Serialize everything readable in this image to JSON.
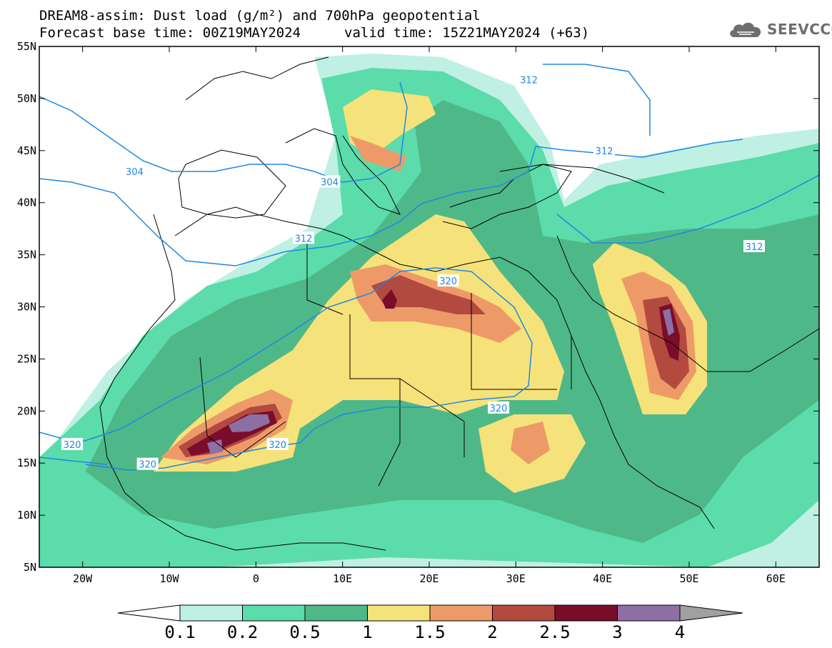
{
  "title": {
    "line1": "DREAM8-assim: Dust load (g/m²) and 700hPa geopotential",
    "line2_base": "Forecast base time: 00Z19MAY2024",
    "line2_valid": "valid time: 15Z21MAY2024 (+63)"
  },
  "logo": {
    "text": "SEEVCCC",
    "icon": "cloud-icon"
  },
  "axes": {
    "lat_labels": [
      "55N",
      "50N",
      "45N",
      "40N",
      "35N",
      "30N",
      "25N",
      "20N",
      "15N",
      "10N",
      "5N"
    ],
    "lon_labels": [
      "20W",
      "10W",
      "0",
      "10E",
      "20E",
      "30E",
      "40E",
      "50E",
      "60E"
    ],
    "lon_range": [
      -25,
      65
    ],
    "lat_range": [
      5,
      55
    ]
  },
  "colorbar": {
    "labels": [
      "0.1",
      "0.2",
      "0.5",
      "1",
      "1.5",
      "2",
      "2.5",
      "3",
      "4"
    ],
    "colors": [
      "#bff0e3",
      "#5bdcaa",
      "#4fb888",
      "#f6e27a",
      "#ee9a68",
      "#b24a40",
      "#7a0d2a",
      "#8e6fa4",
      "#a0a0a0"
    ]
  },
  "contour_labels": [
    {
      "text": "312",
      "lon": 31.5,
      "lat": 51.8
    },
    {
      "text": "312",
      "lon": 40.2,
      "lat": 45.0
    },
    {
      "text": "304",
      "lon": -14.0,
      "lat": 43.0
    },
    {
      "text": "304",
      "lon": 8.5,
      "lat": 42.0
    },
    {
      "text": "312",
      "lon": 5.5,
      "lat": 36.6
    },
    {
      "text": "312",
      "lon": 57.5,
      "lat": 35.8
    },
    {
      "text": "320",
      "lon": 22.2,
      "lat": 32.5
    },
    {
      "text": "320",
      "lon": 28.0,
      "lat": 20.3
    },
    {
      "text": "320",
      "lon": -21.2,
      "lat": 16.8
    },
    {
      "text": "320",
      "lon": 2.5,
      "lat": 16.8
    },
    {
      "text": "320",
      "lon": -12.5,
      "lat": 14.9
    }
  ]
}
